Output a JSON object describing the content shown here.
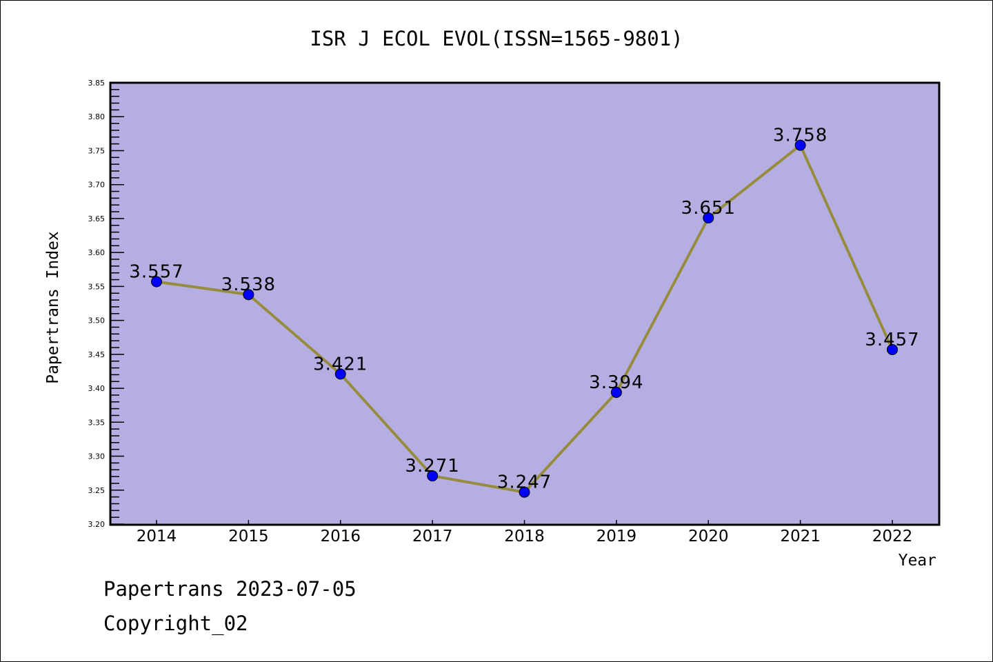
{
  "chart_data": {
    "type": "line",
    "title": "ISR J ECOL EVOL(ISSN=1565-9801)",
    "xlabel": "Year",
    "ylabel": "Papertrans Index",
    "categories": [
      "2014",
      "2015",
      "2016",
      "2017",
      "2018",
      "2019",
      "2020",
      "2021",
      "2022"
    ],
    "values": [
      3.557,
      3.538,
      3.421,
      3.271,
      3.247,
      3.394,
      3.651,
      3.758,
      3.457
    ],
    "data_labels": [
      "3.557",
      "3.538",
      "3.421",
      "3.271",
      "3.247",
      "3.394",
      "3.651",
      "3.758",
      "3.457"
    ],
    "ylim": [
      3.2,
      3.85
    ],
    "yticks": [
      "3.20",
      "3.25",
      "3.30",
      "3.35",
      "3.40",
      "3.45",
      "3.50",
      "3.55",
      "3.60",
      "3.65",
      "3.70",
      "3.75",
      "3.80",
      "3.85"
    ],
    "grid": false,
    "colors": {
      "plot_bg": "#b5aee2",
      "line": "#978c3e",
      "marker": "#0000ff"
    }
  },
  "footer": {
    "line1": "Papertrans 2023-07-05",
    "line2": "Copyright_02"
  }
}
